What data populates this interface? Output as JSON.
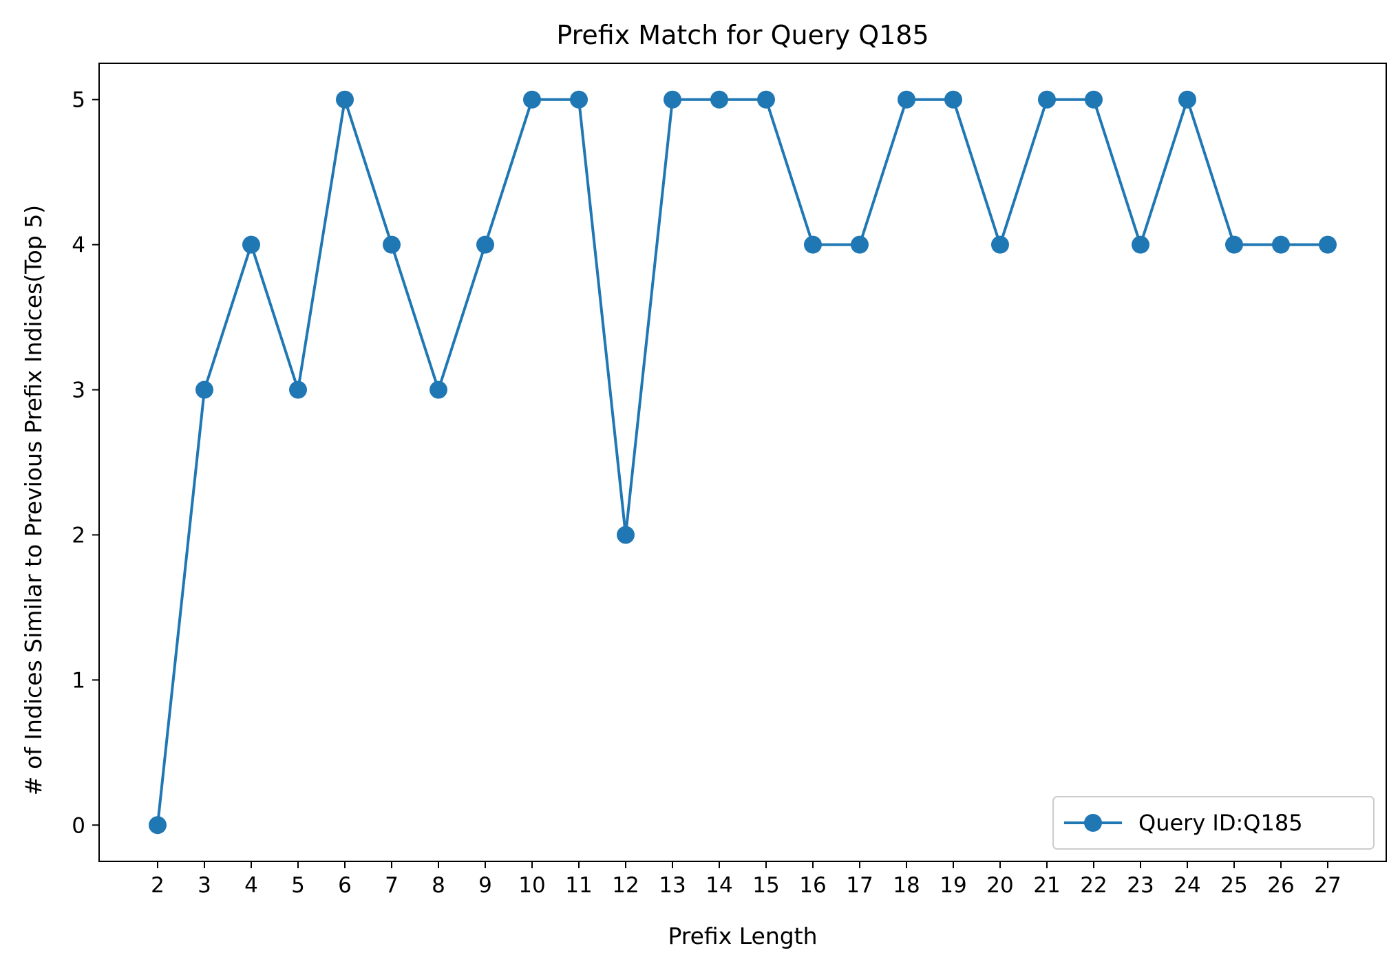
{
  "chart_data": {
    "type": "line",
    "title": "Prefix Match for Query Q185",
    "xlabel": "Prefix Length",
    "ylabel": "# of Indices Similar to Previous Prefix Indices(Top 5)",
    "x": [
      2,
      3,
      4,
      5,
      6,
      7,
      8,
      9,
      10,
      11,
      12,
      13,
      14,
      15,
      16,
      17,
      18,
      19,
      20,
      21,
      22,
      23,
      24,
      25,
      26,
      27
    ],
    "series": [
      {
        "name": "Query ID:Q185",
        "color": "#1f77b4",
        "marker": "circle",
        "values": [
          0,
          3,
          4,
          3,
          5,
          4,
          3,
          4,
          5,
          5,
          2,
          5,
          5,
          5,
          4,
          4,
          5,
          5,
          4,
          5,
          5,
          4,
          5,
          4,
          4,
          4
        ]
      }
    ],
    "xlim": [
      0.75,
      28.25
    ],
    "ylim": [
      -0.25,
      5.25
    ],
    "xticks": [
      "2",
      "3",
      "4",
      "5",
      "6",
      "7",
      "8",
      "9",
      "10",
      "11",
      "12",
      "13",
      "14",
      "15",
      "16",
      "17",
      "18",
      "19",
      "20",
      "21",
      "22",
      "23",
      "24",
      "25",
      "26",
      "27"
    ],
    "yticks": [
      "0",
      "1",
      "2",
      "3",
      "4",
      "5"
    ],
    "grid": false,
    "legend_position": "lower-right"
  }
}
